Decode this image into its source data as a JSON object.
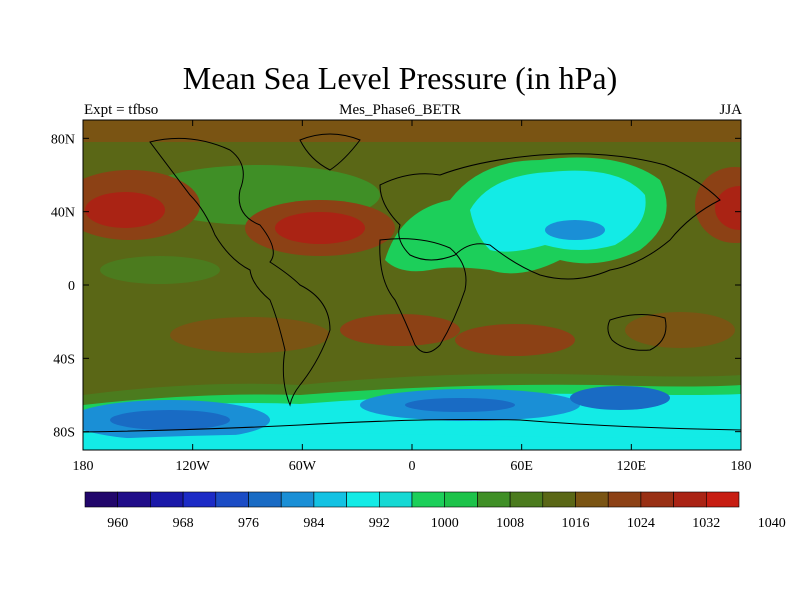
{
  "title": "Mean Sea Level Pressure (in hPa)",
  "left_label": "Expt = tfbso",
  "center_label": "Mes_Phase6_BETR",
  "right_label": "JJA",
  "map": {
    "lon_range": [
      -180,
      180
    ],
    "lat_range": [
      -90,
      90
    ],
    "x_ticks": [
      {
        "value": -180,
        "label": "180"
      },
      {
        "value": -120,
        "label": "120W"
      },
      {
        "value": -60,
        "label": "60W"
      },
      {
        "value": 0,
        "label": "0"
      },
      {
        "value": 60,
        "label": "60E"
      },
      {
        "value": 120,
        "label": "120E"
      },
      {
        "value": 180,
        "label": "180"
      }
    ],
    "y_ticks": [
      {
        "value": 80,
        "label": "80N"
      },
      {
        "value": 40,
        "label": "40N"
      },
      {
        "value": 0,
        "label": "0"
      },
      {
        "value": -40,
        "label": "40S"
      },
      {
        "value": -80,
        "label": "80S"
      }
    ]
  },
  "colorbar": {
    "colors": [
      "#21066b",
      "#200d89",
      "#1a18a8",
      "#1c2bc6",
      "#1b4cc5",
      "#196bc4",
      "#1a8fd6",
      "#13c2e3",
      "#13ebe6",
      "#16d9d4",
      "#1ccf5a",
      "#1dc34a",
      "#3f8f26",
      "#4b7b1e",
      "#5a6716",
      "#7a5413",
      "#8c4115",
      "#993014",
      "#aa2314",
      "#c71d12"
    ],
    "labels": [
      "960",
      "968",
      "976",
      "984",
      "992",
      "1000",
      "1008",
      "1016",
      "1024",
      "1032",
      "1040"
    ]
  },
  "palette": {
    "land_low": "#13ebe6",
    "high_red": "#993014",
    "mid_brown": "#7a5413",
    "green": "#4b7b1e",
    "bright_green": "#1ccf5a",
    "blue_low": "#196bc4"
  }
}
